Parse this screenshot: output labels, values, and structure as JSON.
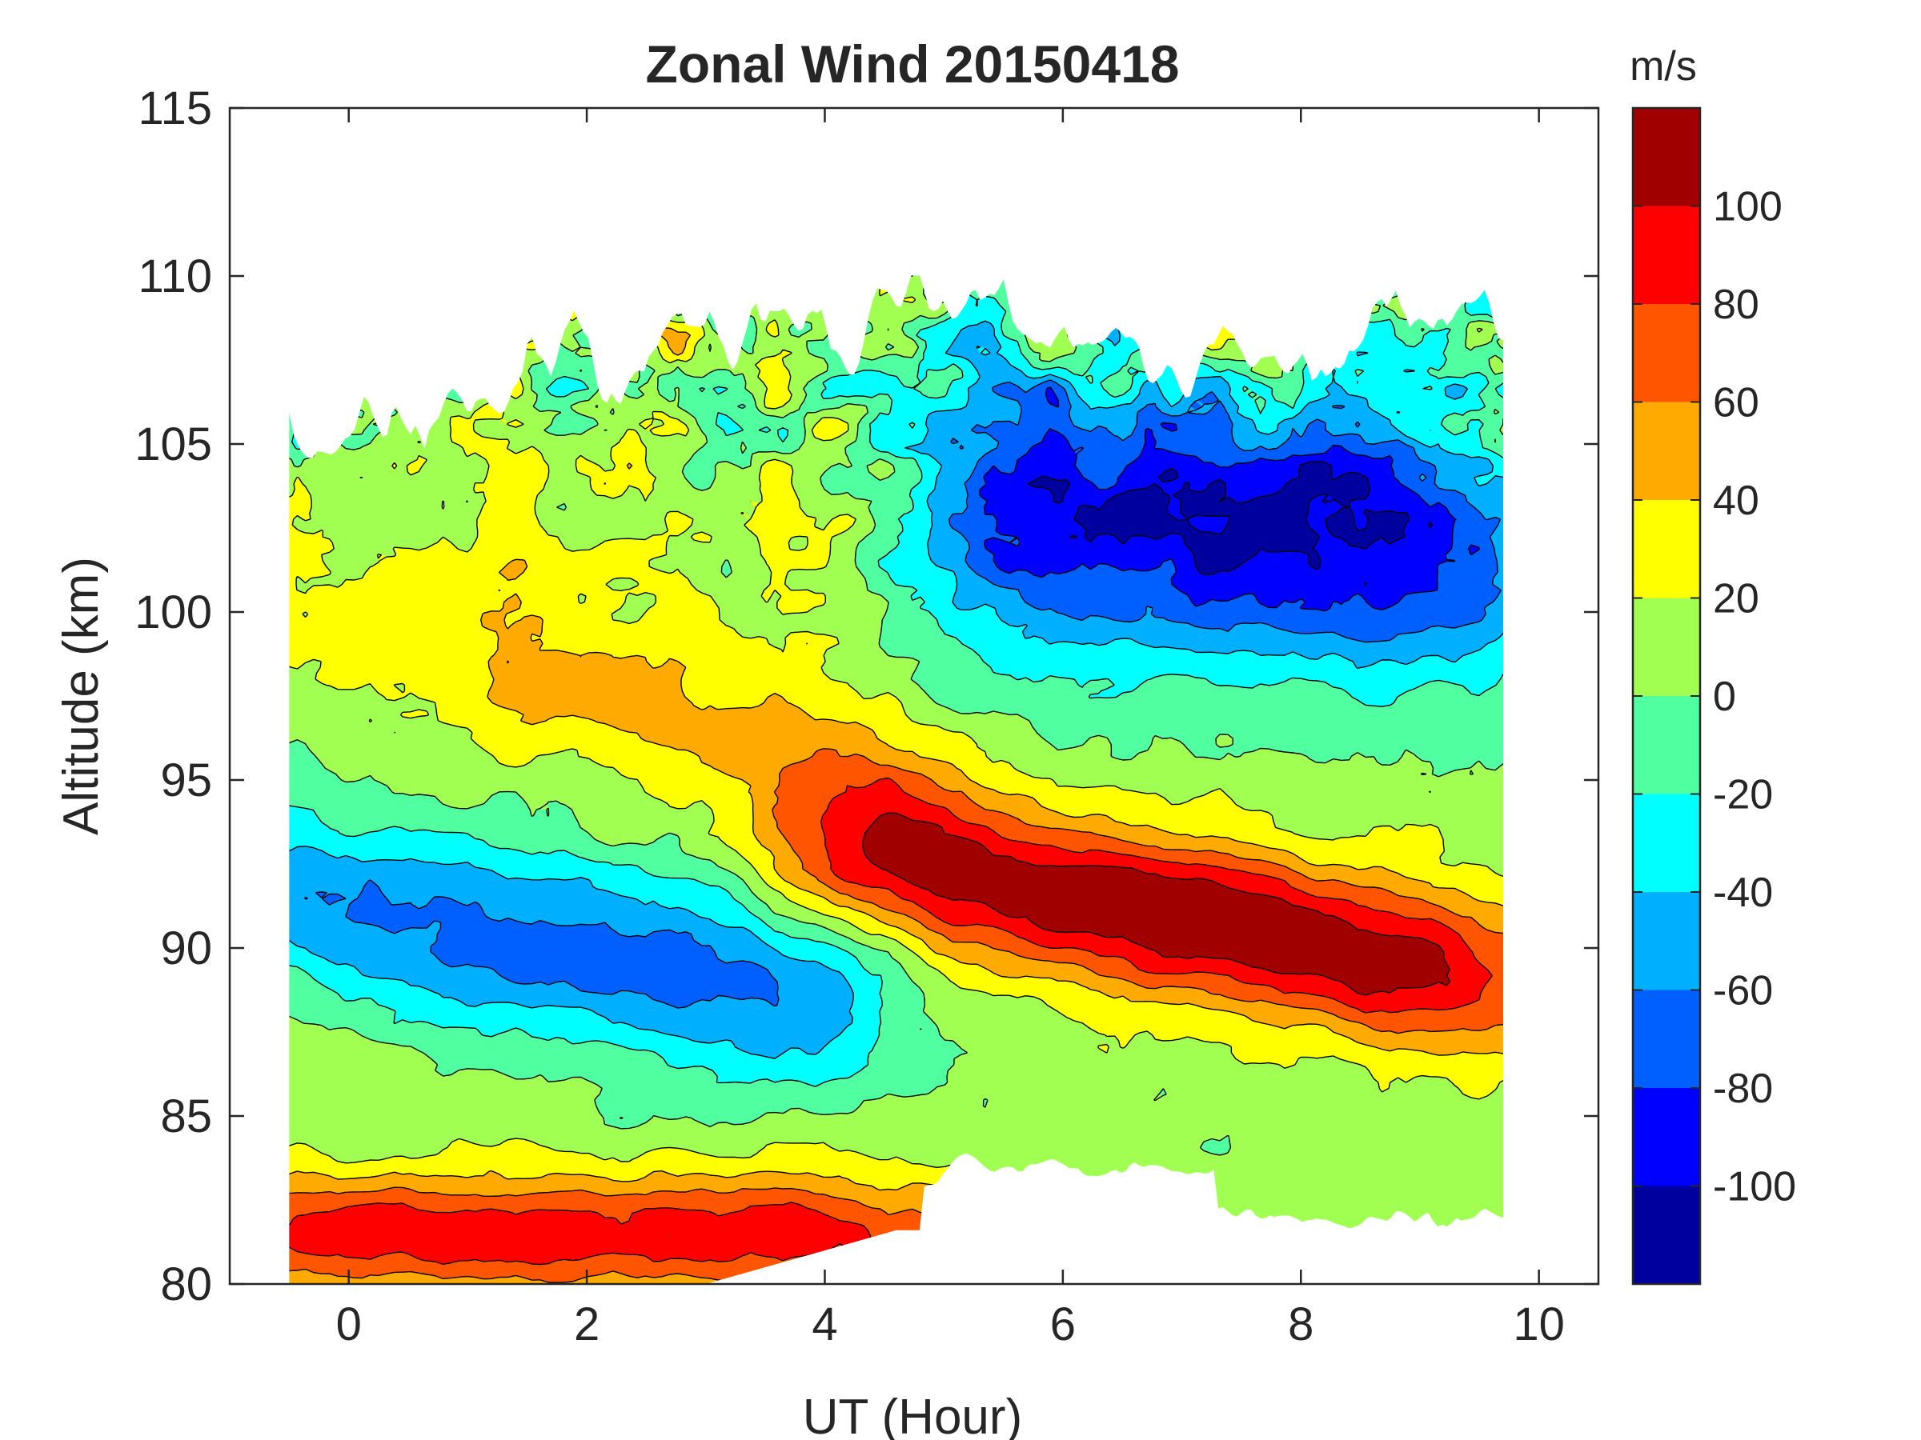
{
  "chart_data": {
    "type": "heatmap",
    "subtype": "filled-contour",
    "title": "Zonal Wind 20150418",
    "xlabel": "UT (Hour)",
    "ylabel": "Altitude (km)",
    "xlim": [
      -1,
      10.5
    ],
    "ylim": [
      80,
      115
    ],
    "xticks": [
      "0",
      "2",
      "4",
      "6",
      "8",
      "10"
    ],
    "yticks": [
      "80",
      "85",
      "90",
      "95",
      "100",
      "105",
      "110",
      "115"
    ],
    "data_extent": {
      "x": [
        -0.5,
        9.7
      ],
      "y": [
        80,
        110
      ]
    },
    "colorbar": {
      "label": "m/s",
      "range": [
        -120,
        120
      ],
      "levels": [
        -120,
        -100,
        -80,
        -60,
        -40,
        -20,
        0,
        20,
        40,
        60,
        80,
        100,
        120
      ],
      "tick_labels": [
        "-100",
        "-80",
        "-60",
        "-40",
        "-20",
        "0",
        "20",
        "40",
        "60",
        "80",
        "100"
      ],
      "colors": [
        "#00009f",
        "#0000ff",
        "#005fff",
        "#00b0ff",
        "#00ffff",
        "#50ffa0",
        "#a0ff50",
        "#ffff00",
        "#ffaa00",
        "#ff5500",
        "#ff0000",
        "#a00000"
      ]
    },
    "features": [
      {
        "name": "eastward jet",
        "ut_start": 4.0,
        "ut_end": 9.7,
        "altitude_start": 93,
        "altitude_end": 89,
        "peak_ms": 110
      },
      {
        "name": "westward jet",
        "ut_start": -0.5,
        "ut_end": 4.0,
        "altitude_start": 91.5,
        "altitude_end": 88.5,
        "peak_ms": -75
      },
      {
        "name": "upper westward region",
        "ut_start": 5.0,
        "ut_end": 9.7,
        "altitude_start": 103,
        "altitude_end": 102,
        "peak_ms": -110
      },
      {
        "name": "low-altitude eastward band",
        "ut_start": -0.5,
        "ut_end": 4.5,
        "altitude_start": 81.5,
        "altitude_end": 81.5,
        "peak_ms": 85
      },
      {
        "name": "mid-altitude eastward region",
        "ut_start": 1.5,
        "ut_end": 4.5,
        "altitude_start": 98,
        "altitude_end": 95,
        "peak_ms": 55
      }
    ]
  }
}
